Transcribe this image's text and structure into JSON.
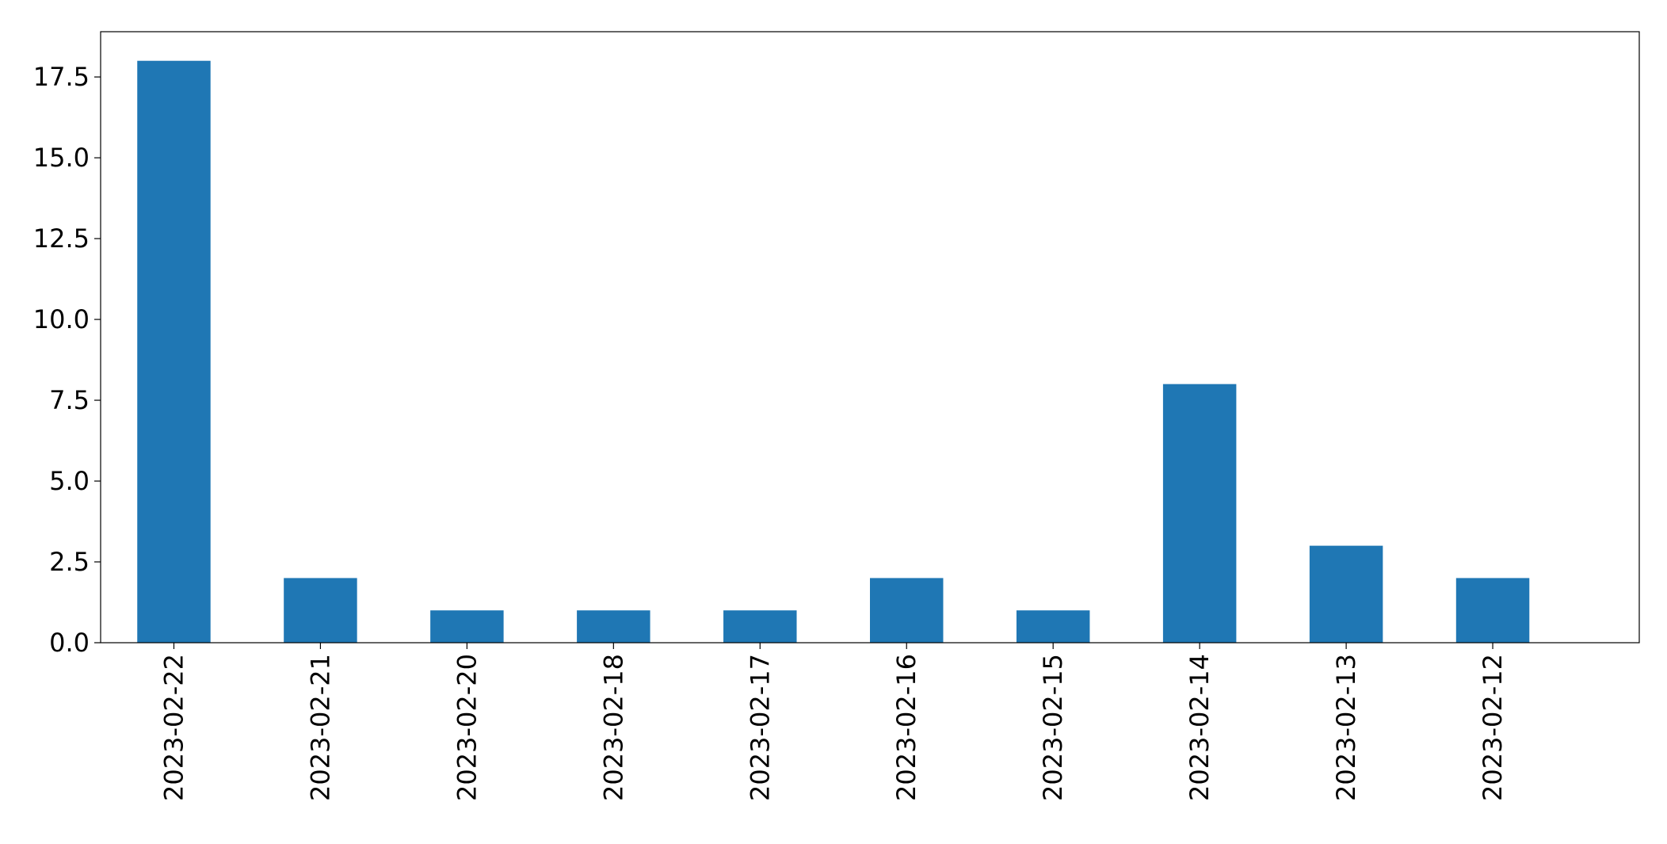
{
  "chart_data": {
    "type": "bar",
    "title": "",
    "xlabel": "",
    "ylabel": "",
    "categories": [
      "2023-02-22",
      "2023-02-21",
      "2023-02-20",
      "2023-02-18",
      "2023-02-17",
      "2023-02-16",
      "2023-02-15",
      "2023-02-14",
      "2023-02-13",
      "2023-02-12"
    ],
    "values": [
      18,
      2,
      1,
      1,
      1,
      2,
      1,
      8,
      3,
      2
    ],
    "ylim": [
      0,
      18.9
    ],
    "yticks": [
      "0.0",
      "2.5",
      "5.0",
      "7.5",
      "10.0",
      "12.5",
      "15.0",
      "17.5"
    ],
    "ytick_values": [
      0,
      2.5,
      5,
      7.5,
      10,
      12.5,
      15,
      17.5
    ],
    "grid": false,
    "legend": "none",
    "bar_color": "#1f77b4"
  }
}
